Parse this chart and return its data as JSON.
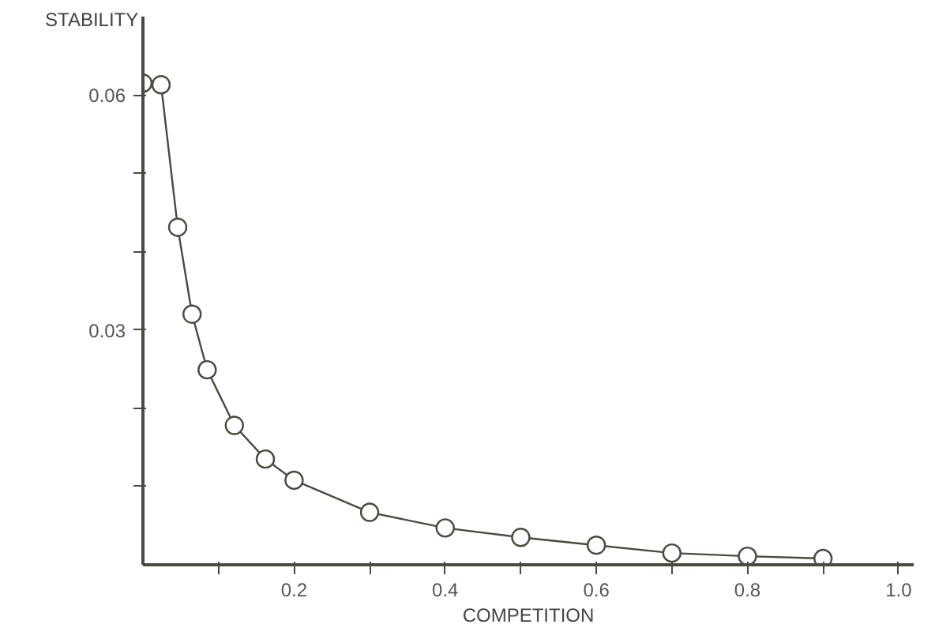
{
  "chart_data": {
    "type": "line",
    "xlabel": "COMPETITION",
    "ylabel": "STABILITY",
    "x": [
      0.0,
      0.024,
      0.046,
      0.065,
      0.085,
      0.121,
      0.162,
      0.2,
      0.3,
      0.4,
      0.5,
      0.6,
      0.7,
      0.8,
      0.9
    ],
    "series": [
      {
        "color": "#4a4a40",
        "values": [
          0.0615,
          0.0613,
          0.0431,
          0.032,
          0.0249,
          0.0178,
          0.0135,
          0.0108,
          0.0067,
          0.0047,
          0.0035,
          0.0025,
          0.0015,
          0.0011,
          0.0008
        ]
      }
    ],
    "marker": "circle",
    "line_style": "solid",
    "grid": false,
    "xlim": [
      0,
      1.02
    ],
    "ylim": [
      0,
      0.07
    ],
    "xticks": [
      {
        "value": 0.1,
        "label": null
      },
      {
        "value": 0.2,
        "label": "0.2"
      },
      {
        "value": 0.3,
        "label": null
      },
      {
        "value": 0.4,
        "label": "0.4"
      },
      {
        "value": 0.5,
        "label": null
      },
      {
        "value": 0.6,
        "label": "0.6"
      },
      {
        "value": 0.7,
        "label": null
      },
      {
        "value": 0.8,
        "label": "0.8"
      },
      {
        "value": 0.9,
        "label": null
      },
      {
        "value": 1.0,
        "label": "1.0"
      }
    ],
    "yticks": [
      {
        "value": 0.01,
        "label": null
      },
      {
        "value": 0.02,
        "label": null
      },
      {
        "value": 0.03,
        "label": "0.03"
      },
      {
        "value": 0.04,
        "label": null
      },
      {
        "value": 0.05,
        "label": null
      },
      {
        "value": 0.06,
        "label": "0.06"
      }
    ]
  }
}
